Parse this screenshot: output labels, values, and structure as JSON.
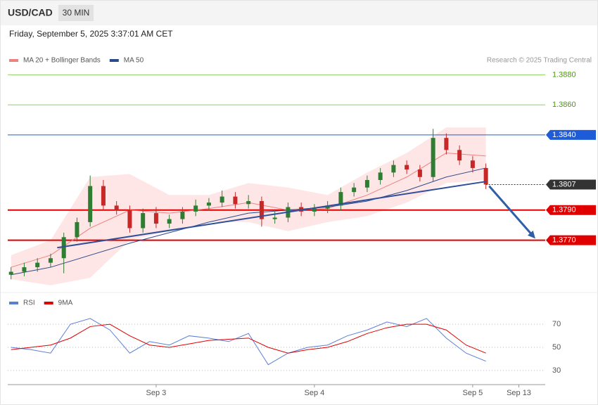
{
  "header": {
    "symbol": "USD/CAD",
    "interval": "30 MIN",
    "timestamp": "Friday, September 5, 2025 3:37:01 AM CET",
    "credit": "Research © 2025 Trading Central"
  },
  "chart_data": [
    {
      "type": "candlestick",
      "x": [
        0,
        2,
        4,
        6,
        8,
        10,
        12,
        14,
        16,
        18,
        20,
        22,
        24,
        26,
        28,
        30,
        32,
        34,
        36,
        38,
        40,
        42,
        44,
        46,
        48,
        50,
        52,
        54,
        56,
        58,
        60,
        62,
        64,
        66,
        68,
        70,
        72
      ],
      "open": [
        1.3747,
        1.3749,
        1.3752,
        1.3755,
        1.3758,
        1.3772,
        1.3782,
        1.3806,
        1.3793,
        1.379,
        1.3778,
        1.3788,
        1.3781,
        1.3784,
        1.3789,
        1.3793,
        1.3795,
        1.3799,
        1.3794,
        1.3796,
        1.3784,
        1.3785,
        1.3792,
        1.3789,
        1.3791,
        1.3793,
        1.3802,
        1.3805,
        1.381,
        1.3815,
        1.382,
        1.3817,
        1.3812,
        1.3838,
        1.383,
        1.3823,
        1.3818
      ],
      "high": [
        1.3752,
        1.3755,
        1.3758,
        1.3761,
        1.3775,
        1.3785,
        1.3813,
        1.381,
        1.3796,
        1.3793,
        1.3791,
        1.3792,
        1.3787,
        1.3792,
        1.3797,
        1.3798,
        1.3803,
        1.3802,
        1.38,
        1.3799,
        1.3789,
        1.3795,
        1.3795,
        1.3794,
        1.3796,
        1.3805,
        1.3808,
        1.3813,
        1.3818,
        1.3823,
        1.3823,
        1.382,
        1.3844,
        1.3841,
        1.3833,
        1.3826,
        1.3821
      ],
      "low": [
        1.3744,
        1.3746,
        1.3749,
        1.3752,
        1.3748,
        1.3769,
        1.3779,
        1.379,
        1.3787,
        1.3775,
        1.3775,
        1.3778,
        1.3778,
        1.3781,
        1.3786,
        1.379,
        1.3792,
        1.3791,
        1.3791,
        1.3779,
        1.3781,
        1.3782,
        1.3786,
        1.3786,
        1.3788,
        1.379,
        1.3799,
        1.3802,
        1.3807,
        1.3812,
        1.3814,
        1.3809,
        1.3809,
        1.3827,
        1.382,
        1.3815,
        1.3804
      ],
      "close": [
        1.3749,
        1.3752,
        1.3755,
        1.3758,
        1.3772,
        1.3782,
        1.3806,
        1.3793,
        1.379,
        1.3778,
        1.3788,
        1.3781,
        1.3784,
        1.3789,
        1.3793,
        1.3795,
        1.3799,
        1.3794,
        1.3796,
        1.3784,
        1.3785,
        1.3792,
        1.3789,
        1.3791,
        1.3793,
        1.3802,
        1.3805,
        1.381,
        1.3815,
        1.382,
        1.3817,
        1.3812,
        1.3838,
        1.383,
        1.3823,
        1.3818,
        1.3807
      ],
      "up_color": "#2e7d32",
      "down_color": "#c62828",
      "xlim": [
        -0.5,
        81
      ],
      "ylim": [
        1.3738,
        1.3897
      ],
      "overlays": [
        {
          "name": "MA 20 + Bollinger Bands",
          "color": "#f08080",
          "band_color": "#ffd6d6",
          "x": [
            0,
            6,
            12,
            18,
            24,
            30,
            36,
            42,
            48,
            54,
            60,
            66,
            72
          ],
          "values": [
            1.3752,
            1.376,
            1.3778,
            1.379,
            1.3788,
            1.3791,
            1.3795,
            1.379,
            1.3791,
            1.38,
            1.3812,
            1.3828,
            1.3826
          ],
          "upper": [
            1.376,
            1.377,
            1.3812,
            1.3814,
            1.38,
            1.38,
            1.3808,
            1.3805,
            1.38,
            1.3815,
            1.3828,
            1.3845,
            1.3845
          ],
          "lower": [
            1.3744,
            1.374,
            1.3745,
            1.377,
            1.3776,
            1.3782,
            1.3782,
            1.3776,
            1.3782,
            1.3786,
            1.3795,
            1.3808,
            1.381
          ]
        },
        {
          "name": "MA 50",
          "color": "#2b4a8a",
          "x": [
            0,
            6,
            12,
            18,
            24,
            30,
            36,
            42,
            48,
            54,
            60,
            66,
            72
          ],
          "values": [
            1.3747,
            1.3752,
            1.376,
            1.3768,
            1.3775,
            1.3782,
            1.3788,
            1.379,
            1.3792,
            1.3796,
            1.3803,
            1.3812,
            1.3818
          ]
        }
      ],
      "levels": [
        {
          "value": 1.388,
          "label": "1.3880",
          "color": "#8fcf60",
          "text_color": "#4a9a00",
          "badge": false
        },
        {
          "value": 1.386,
          "label": "1.3860",
          "color": "#8fcf60",
          "text_color": "#4a9a00",
          "badge": false
        },
        {
          "value": 1.384,
          "label": "1.3840",
          "color": "#1e5bd8",
          "text_color": "#ffffff",
          "badge": true
        },
        {
          "value": 1.3807,
          "label": "1.3807",
          "color": "#333333",
          "text_color": "#ffffff",
          "badge": true,
          "dotted": true
        },
        {
          "value": 1.379,
          "label": "1.3790",
          "color": "#e00000",
          "text_color": "#ffffff",
          "badge": true
        },
        {
          "value": 1.377,
          "label": "1.3770",
          "color": "#e00000",
          "text_color": "#ffffff",
          "badge": true
        }
      ],
      "trendline": {
        "color": "#2f4f9a",
        "x": [
          7,
          72
        ],
        "values": [
          1.3765,
          1.3809
        ]
      },
      "arrow": {
        "color": "#2f5fa8",
        "x": [
          72.5,
          79.5
        ],
        "values": [
          1.3806,
          1.3771
        ]
      }
    },
    {
      "type": "line",
      "xlim": [
        -0.5,
        81
      ],
      "ylim": [
        22,
        92
      ],
      "yticks": [
        30,
        50,
        70
      ],
      "xticks": [
        {
          "value": 22,
          "label": "Sep 3"
        },
        {
          "value": 46,
          "label": "Sep 4"
        },
        {
          "value": 70,
          "label": "Sep 5"
        },
        {
          "value": 77,
          "label": "Sep 13"
        }
      ],
      "series": [
        {
          "name": "RSI",
          "color": "#5b7fd6",
          "x": [
            0,
            3,
            6,
            9,
            12,
            15,
            18,
            21,
            24,
            27,
            30,
            33,
            36,
            39,
            42,
            45,
            48,
            51,
            54,
            57,
            60,
            63,
            66,
            69,
            72
          ],
          "values": [
            50,
            48,
            45,
            70,
            75,
            65,
            45,
            55,
            52,
            60,
            58,
            55,
            62,
            35,
            45,
            50,
            52,
            60,
            65,
            72,
            68,
            75,
            58,
            45,
            38
          ]
        },
        {
          "name": "9MA",
          "color": "#e00000",
          "x": [
            0,
            3,
            6,
            9,
            12,
            15,
            18,
            21,
            24,
            27,
            30,
            33,
            36,
            39,
            42,
            45,
            48,
            51,
            54,
            57,
            60,
            63,
            66,
            69,
            72
          ],
          "values": [
            48,
            50,
            52,
            58,
            68,
            70,
            60,
            52,
            50,
            53,
            56,
            57,
            58,
            50,
            45,
            48,
            50,
            55,
            62,
            67,
            70,
            70,
            65,
            52,
            45
          ]
        }
      ]
    }
  ]
}
